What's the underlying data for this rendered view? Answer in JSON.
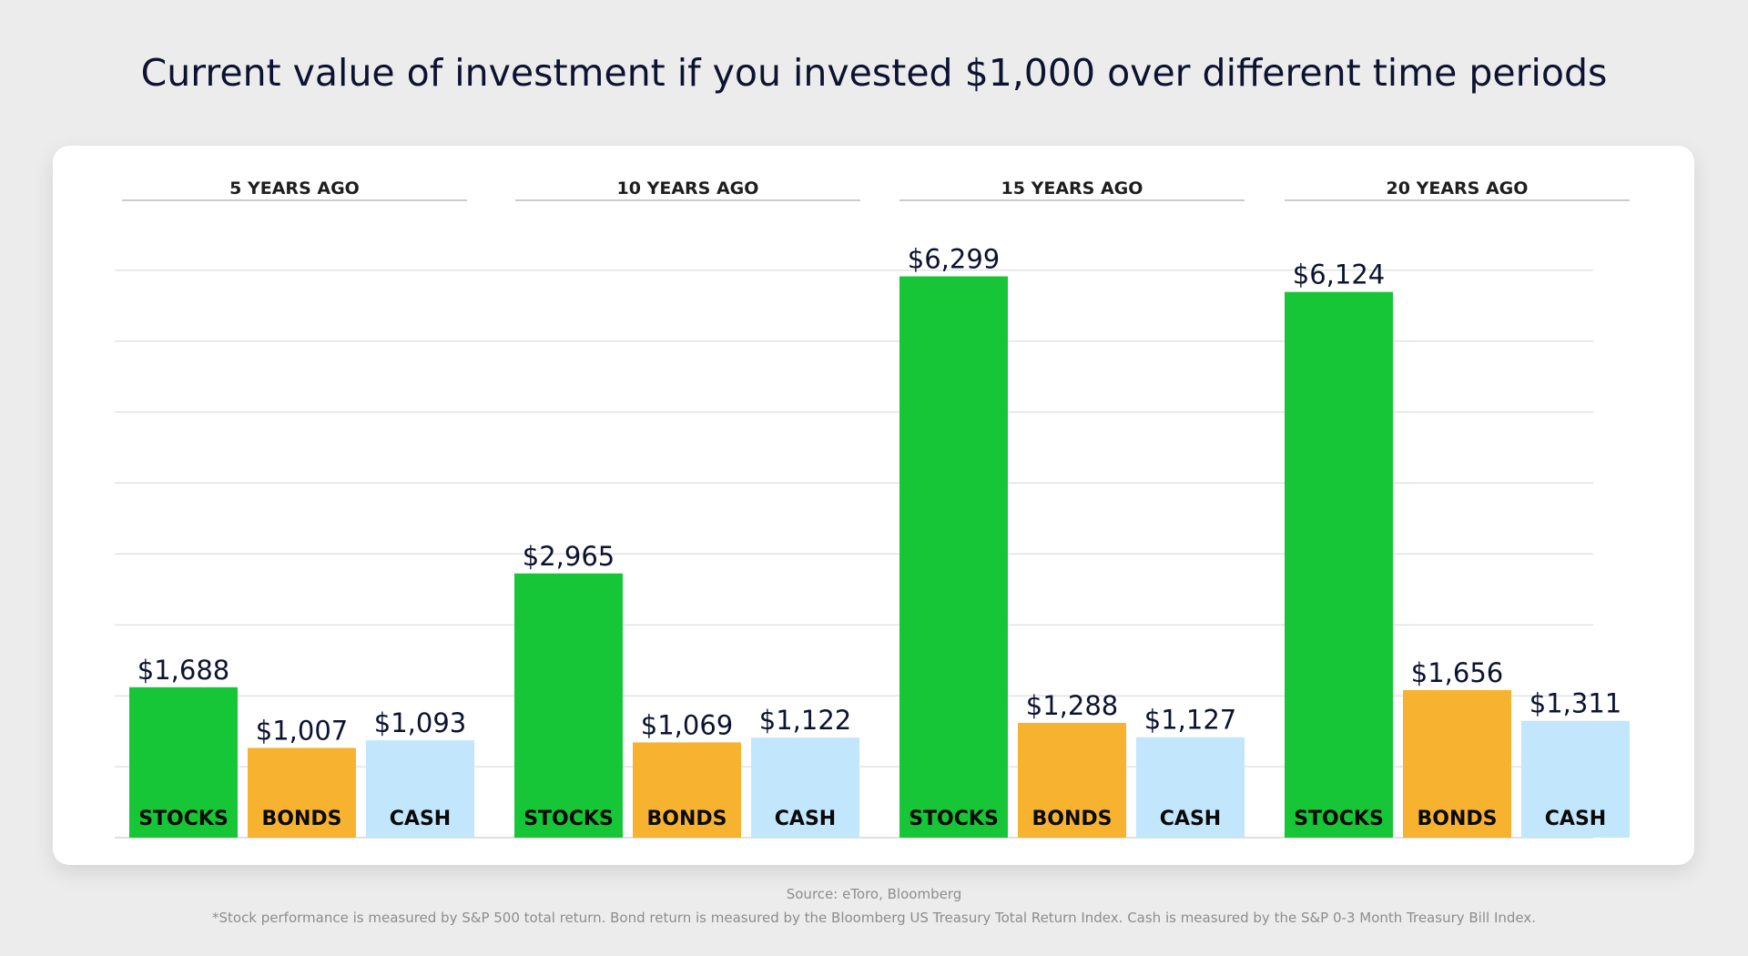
{
  "title": "Current value of investment if you invested $1,000 over different time periods",
  "source": "Source: eToro, Bloomberg",
  "footnote": "*Stock performance is measured by S&P 500 total return. Bond return is measured by the Bloomberg US Treasury Total Return Index. Cash is measured by the S&P 0-3 Month Treasury Bill Index.",
  "colors": {
    "stocks": "#16c637",
    "bonds": "#f7b32f",
    "cash": "#c2e6fb",
    "gridline": "#d6d6d6",
    "text": "#0c1330"
  },
  "chart_data": {
    "type": "bar",
    "grid": true,
    "ylim": [
      0,
      8000
    ],
    "groups": [
      {
        "label": "5 YEARS AGO",
        "bars": [
          {
            "category": "STOCKS",
            "value": 1688,
            "value_label": "$1,688"
          },
          {
            "category": "BONDS",
            "value": 1007,
            "value_label": "$1,007"
          },
          {
            "category": "CASH",
            "value": 1093,
            "value_label": "$1,093"
          }
        ]
      },
      {
        "label": "10 YEARS AGO",
        "bars": [
          {
            "category": "STOCKS",
            "value": 2965,
            "value_label": "$2,965"
          },
          {
            "category": "BONDS",
            "value": 1069,
            "value_label": "$1,069"
          },
          {
            "category": "CASH",
            "value": 1122,
            "value_label": "$1,122"
          }
        ]
      },
      {
        "label": "15 YEARS AGO",
        "bars": [
          {
            "category": "STOCKS",
            "value": 6299,
            "value_label": "$6,299"
          },
          {
            "category": "BONDS",
            "value": 1288,
            "value_label": "$1,288"
          },
          {
            "category": "CASH",
            "value": 1127,
            "value_label": "$1,127"
          }
        ]
      },
      {
        "label": "20 YEARS AGO",
        "bars": [
          {
            "category": "STOCKS",
            "value": 6124,
            "value_label": "$6,124"
          },
          {
            "category": "BONDS",
            "value": 1656,
            "value_label": "$1,656"
          },
          {
            "category": "CASH",
            "value": 1311,
            "value_label": "$1,311"
          }
        ]
      }
    ]
  }
}
